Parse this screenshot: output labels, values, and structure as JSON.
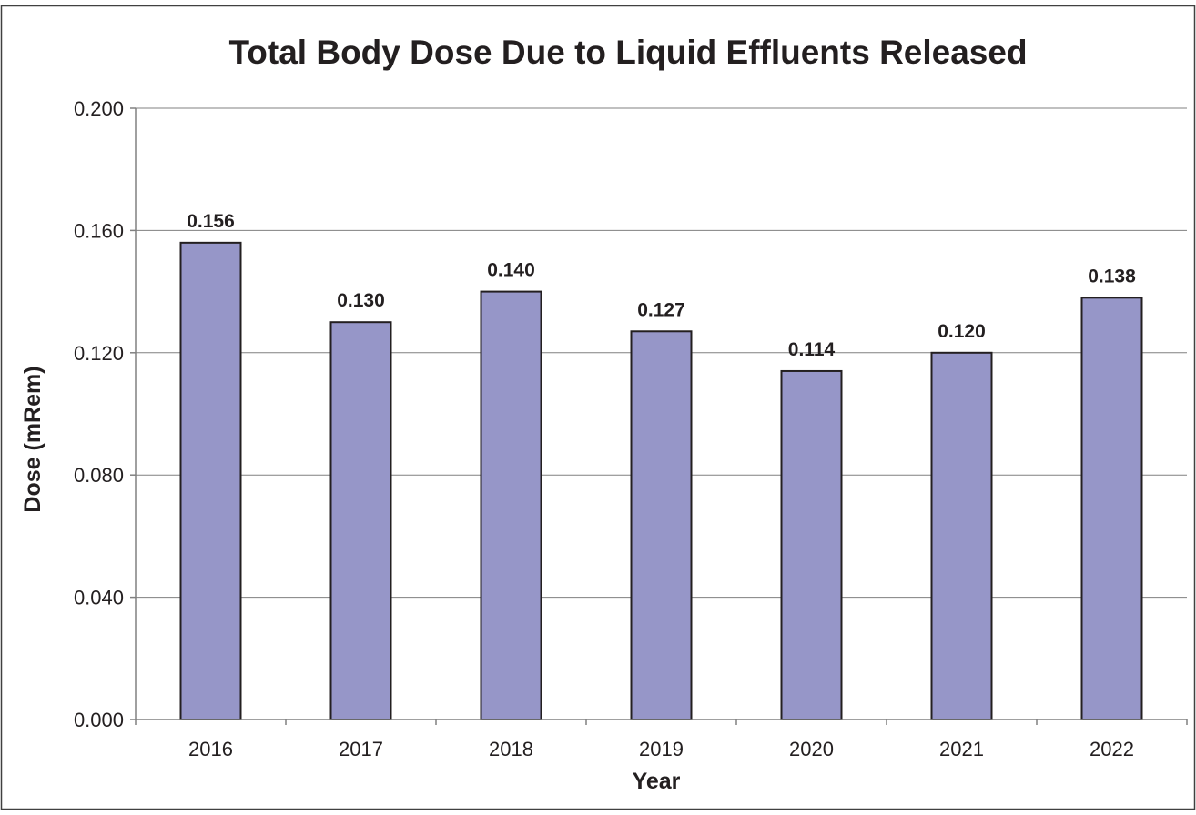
{
  "chart_data": {
    "type": "bar",
    "title": "Total Body Dose Due to Liquid Effluents Released",
    "xlabel": "Year",
    "ylabel": "Dose (mRem)",
    "categories": [
      "2016",
      "2017",
      "2018",
      "2019",
      "2020",
      "2021",
      "2022"
    ],
    "values": [
      0.156,
      0.13,
      0.14,
      0.127,
      0.114,
      0.12,
      0.138
    ],
    "value_labels": [
      "0.156",
      "0.130",
      "0.140",
      "0.127",
      "0.114",
      "0.120",
      "0.138"
    ],
    "ylim": [
      0,
      0.2
    ],
    "yticks": [
      0,
      0.04,
      0.08,
      0.12,
      0.16,
      0.2
    ],
    "ytick_labels": [
      "0.000",
      "0.040",
      "0.080",
      "0.120",
      "0.160",
      "0.200"
    ],
    "grid": true,
    "legend": "none",
    "colors": {
      "bar_fill": "#9696c8",
      "bar_stroke": "#231f20",
      "grid": "#808080",
      "axis": "#808080",
      "frame": "#404040",
      "text": "#231f20"
    }
  }
}
